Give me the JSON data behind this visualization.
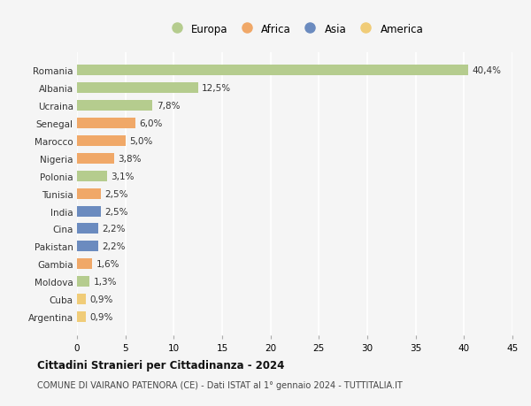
{
  "countries": [
    "Romania",
    "Albania",
    "Ucraina",
    "Senegal",
    "Marocco",
    "Nigeria",
    "Polonia",
    "Tunisia",
    "India",
    "Cina",
    "Pakistan",
    "Gambia",
    "Moldova",
    "Cuba",
    "Argentina"
  ],
  "values": [
    40.4,
    12.5,
    7.8,
    6.0,
    5.0,
    3.8,
    3.1,
    2.5,
    2.5,
    2.2,
    2.2,
    1.6,
    1.3,
    0.9,
    0.9
  ],
  "labels": [
    "40,4%",
    "12,5%",
    "7,8%",
    "6,0%",
    "5,0%",
    "3,8%",
    "3,1%",
    "2,5%",
    "2,5%",
    "2,2%",
    "2,2%",
    "1,6%",
    "1,3%",
    "0,9%",
    "0,9%"
  ],
  "continents": [
    "Europa",
    "Europa",
    "Europa",
    "Africa",
    "Africa",
    "Africa",
    "Europa",
    "Africa",
    "Asia",
    "Asia",
    "Asia",
    "Africa",
    "Europa",
    "America",
    "America"
  ],
  "colors": {
    "Europa": "#b5cc8e",
    "Africa": "#f0a868",
    "Asia": "#6b8bbf",
    "America": "#f0cc78"
  },
  "legend_order": [
    "Europa",
    "Africa",
    "Asia",
    "America"
  ],
  "title": "Cittadini Stranieri per Cittadinanza - 2024",
  "subtitle": "COMUNE DI VAIRANO PATENORA (CE) - Dati ISTAT al 1° gennaio 2024 - TUTTITALIA.IT",
  "xlim": [
    0,
    45
  ],
  "xticks": [
    0,
    5,
    10,
    15,
    20,
    25,
    30,
    35,
    40,
    45
  ],
  "background_color": "#f5f5f5",
  "grid_color": "#ffffff",
  "bar_height": 0.6
}
